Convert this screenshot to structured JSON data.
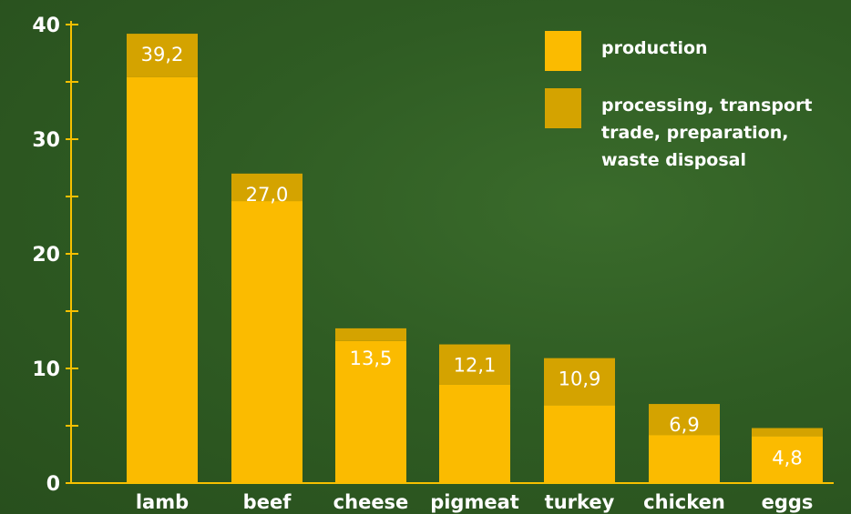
{
  "colors": {
    "production": "#fbbb00",
    "processing": "#d4a300",
    "axis": "#f7c000",
    "background": "#2e5a22"
  },
  "chart_data": {
    "type": "bar",
    "stacked": true,
    "categories": [
      "lamb",
      "beef",
      "cheese",
      "pigmeat",
      "turkey",
      "chicken",
      "eggs"
    ],
    "totals_labels": [
      "39,2",
      "27,0",
      "13,5",
      "12,1",
      "10,9",
      "6,9",
      "4,8"
    ],
    "series": [
      {
        "name": "production",
        "values": [
          35.4,
          24.6,
          12.4,
          8.6,
          6.8,
          4.2,
          4.1
        ]
      },
      {
        "name": "processing, transport trade, preparation, waste disposal",
        "values": [
          3.8,
          2.4,
          1.1,
          3.5,
          4.1,
          2.7,
          0.7
        ]
      }
    ],
    "totals": [
      39.2,
      27.0,
      13.5,
      12.1,
      10.9,
      6.9,
      4.8
    ],
    "yticks": [
      "0",
      "10",
      "20",
      "30",
      "40"
    ],
    "ylim": [
      0,
      40
    ],
    "legend": {
      "position": "top-right",
      "items": [
        {
          "lines": [
            "production"
          ]
        },
        {
          "lines": [
            "processing, transport",
            "trade, preparation,",
            "waste disposal"
          ]
        }
      ]
    }
  }
}
